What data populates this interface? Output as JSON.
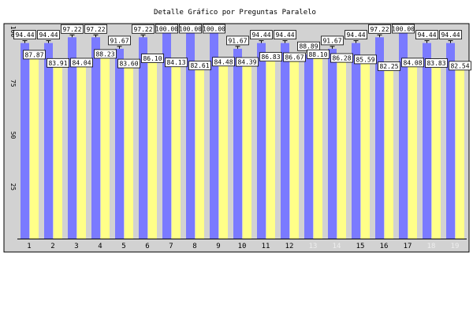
{
  "chart_data": {
    "type": "bar",
    "title": "Detalle Gráfico por Preguntas Paralelo",
    "xlabel": "",
    "ylabel": "",
    "ylim": [
      0,
      100
    ],
    "yticks": [
      25,
      50,
      75,
      100
    ],
    "grid": false,
    "legend": "none",
    "categories": [
      "1",
      "2",
      "3",
      "4",
      "5",
      "6",
      "7",
      "8",
      "9",
      "10",
      "11",
      "12",
      "13",
      "14",
      "15",
      "16",
      "17",
      "18",
      "19"
    ],
    "series": [
      {
        "color": "#7a7aff",
        "values": [
          94.44,
          94.44,
          97.22,
          97.22,
          91.67,
          97.22,
          100.0,
          100.0,
          100.0,
          91.67,
          94.44,
          94.44,
          88.89,
          91.67,
          94.44,
          97.22,
          100.0,
          94.44,
          94.44
        ]
      },
      {
        "color": "#ffff88",
        "values": [
          87.87,
          83.91,
          84.04,
          88.23,
          83.6,
          86.1,
          84.13,
          82.61,
          84.48,
          84.39,
          86.83,
          86.67,
          88.1,
          86.28,
          85.59,
          82.25,
          84.08,
          83.83,
          82.54
        ]
      }
    ],
    "tick_label_colors": {
      "normal": "#000000",
      "muted": "#eeeeee",
      "muted_categories": [
        "13",
        "14",
        "18",
        "19"
      ]
    },
    "plot_background": "#d2d2d2"
  }
}
